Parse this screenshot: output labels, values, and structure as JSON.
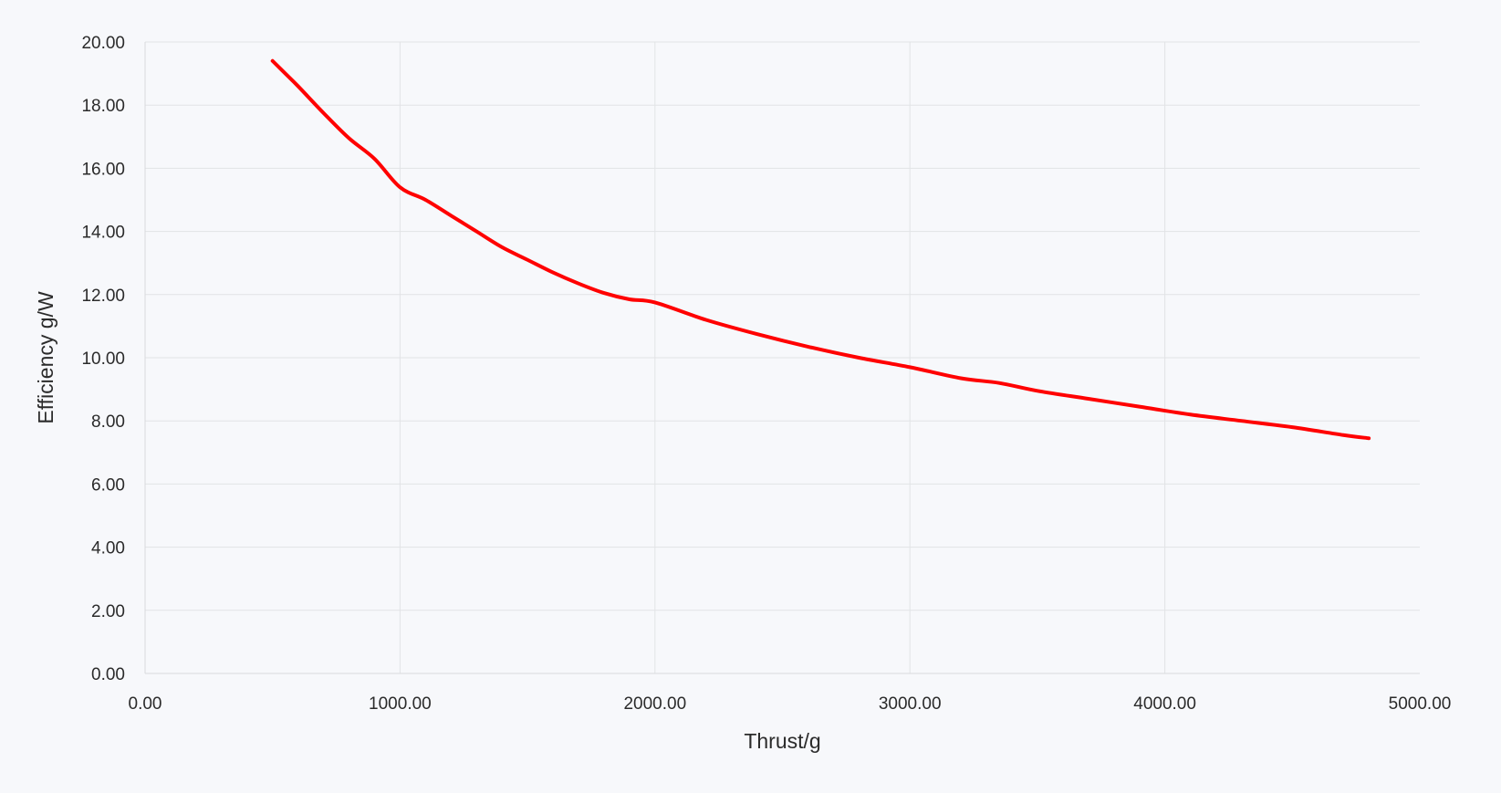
{
  "chart_data": {
    "type": "line",
    "title": "",
    "xlabel": "Thrust/g",
    "ylabel": "Efficiency g/W",
    "xlim": [
      0,
      5000
    ],
    "ylim": [
      0,
      20
    ],
    "x_ticks": [
      "0.00",
      "1000.00",
      "2000.00",
      "3000.00",
      "4000.00",
      "5000.00"
    ],
    "y_ticks": [
      "0.00",
      "2.00",
      "4.00",
      "6.00",
      "8.00",
      "10.00",
      "12.00",
      "14.00",
      "16.00",
      "18.00",
      "20.00"
    ],
    "grid": true,
    "legend": "none",
    "series": [
      {
        "color": "#ff0000",
        "points": [
          [
            500,
            19.4
          ],
          [
            550,
            19.0
          ],
          [
            600,
            18.6
          ],
          [
            700,
            17.75
          ],
          [
            800,
            16.95
          ],
          [
            900,
            16.3
          ],
          [
            1000,
            15.4
          ],
          [
            1100,
            15.0
          ],
          [
            1200,
            14.5
          ],
          [
            1300,
            14.0
          ],
          [
            1400,
            13.5
          ],
          [
            1500,
            13.1
          ],
          [
            1600,
            12.7
          ],
          [
            1700,
            12.35
          ],
          [
            1800,
            12.05
          ],
          [
            1900,
            11.85
          ],
          [
            2000,
            11.75
          ],
          [
            2200,
            11.2
          ],
          [
            2400,
            10.75
          ],
          [
            2600,
            10.35
          ],
          [
            2800,
            10.0
          ],
          [
            3000,
            9.7
          ],
          [
            3200,
            9.35
          ],
          [
            3350,
            9.2
          ],
          [
            3500,
            8.95
          ],
          [
            3700,
            8.7
          ],
          [
            3900,
            8.45
          ],
          [
            4100,
            8.2
          ],
          [
            4300,
            8.0
          ],
          [
            4500,
            7.8
          ],
          [
            4700,
            7.55
          ],
          [
            4800,
            7.45
          ]
        ]
      }
    ]
  }
}
